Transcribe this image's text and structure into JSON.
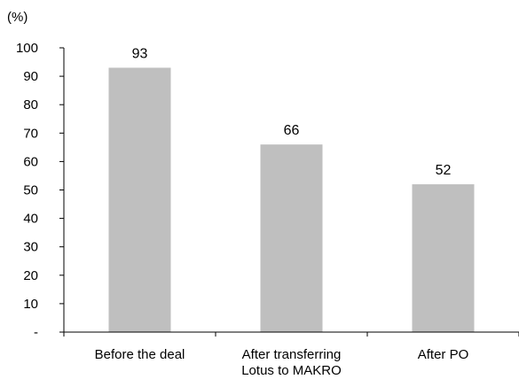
{
  "chart_data": {
    "type": "bar",
    "unit_label": "(%)",
    "categories": [
      [
        "Before the deal"
      ],
      [
        "After transferring",
        "Lotus to MAKRO"
      ],
      [
        "After PO"
      ]
    ],
    "values": [
      93,
      66,
      52
    ],
    "data_labels": [
      "93",
      "66",
      "52"
    ],
    "ylim": [
      0,
      100
    ],
    "y_ticks": [
      0,
      10,
      20,
      30,
      40,
      50,
      60,
      70,
      80,
      90,
      100
    ],
    "y_tick_labels": [
      "-",
      "10",
      "20",
      "30",
      "40",
      "50",
      "60",
      "70",
      "80",
      "90",
      "100"
    ],
    "bar_color": "#bfbfbf",
    "axis_color": "#000000",
    "grid": false,
    "legend": "none"
  }
}
